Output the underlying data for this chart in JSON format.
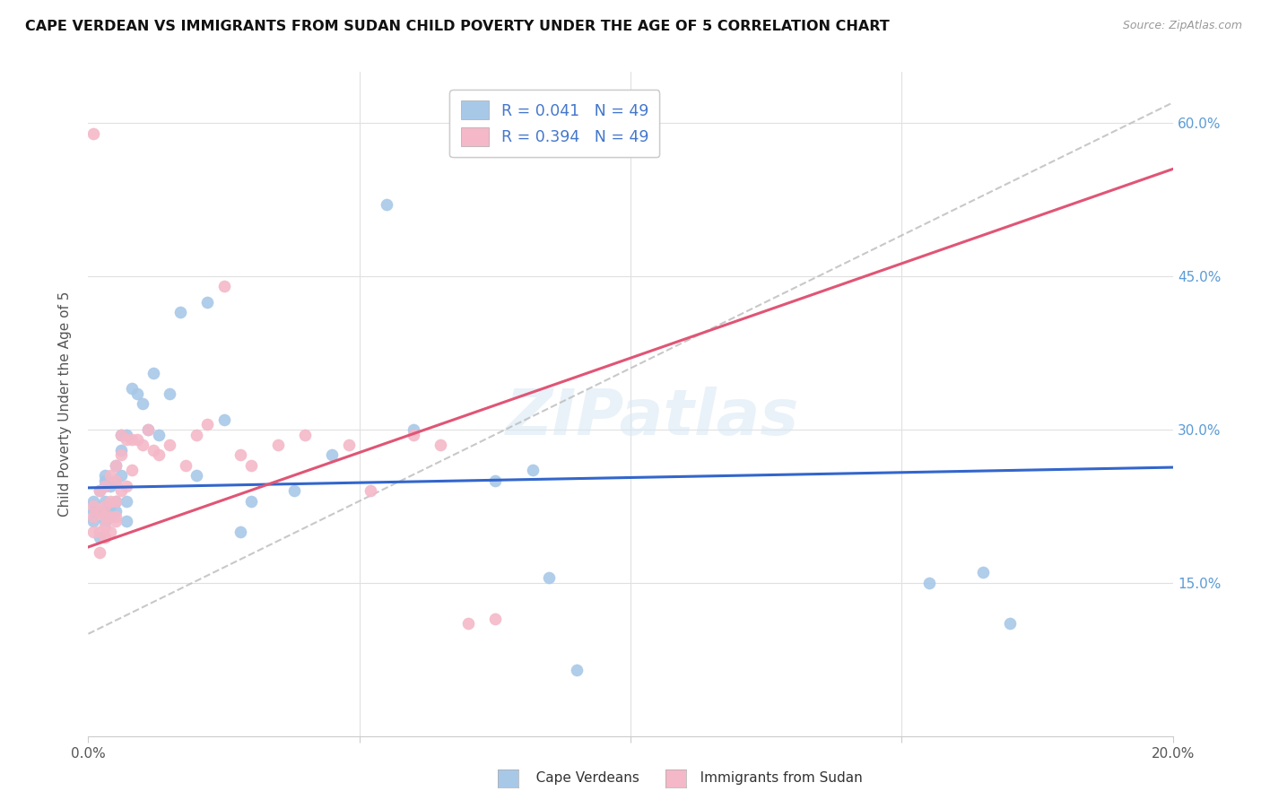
{
  "title": "CAPE VERDEAN VS IMMIGRANTS FROM SUDAN CHILD POVERTY UNDER THE AGE OF 5 CORRELATION CHART",
  "source": "Source: ZipAtlas.com",
  "ylabel": "Child Poverty Under the Age of 5",
  "xlim": [
    0.0,
    0.2
  ],
  "ylim": [
    0.0,
    0.65
  ],
  "x_ticks": [
    0.0,
    0.05,
    0.1,
    0.15,
    0.2
  ],
  "y_ticks": [
    0.0,
    0.15,
    0.3,
    0.45,
    0.6
  ],
  "blue_color": "#a8c8e8",
  "pink_color": "#f4b8c8",
  "blue_line_color": "#3366cc",
  "pink_line_color": "#e05575",
  "dashed_line_color": "#bbbbbb",
  "R_blue": 0.041,
  "N_blue": 49,
  "R_pink": 0.394,
  "N_pink": 49,
  "cape_verdean_x": [
    0.001,
    0.001,
    0.001,
    0.002,
    0.002,
    0.002,
    0.003,
    0.003,
    0.003,
    0.003,
    0.003,
    0.003,
    0.004,
    0.004,
    0.004,
    0.005,
    0.005,
    0.005,
    0.005,
    0.006,
    0.006,
    0.006,
    0.007,
    0.007,
    0.007,
    0.008,
    0.009,
    0.01,
    0.011,
    0.012,
    0.013,
    0.015,
    0.017,
    0.02,
    0.022,
    0.025,
    0.028,
    0.03,
    0.038,
    0.045,
    0.055,
    0.06,
    0.075,
    0.082,
    0.085,
    0.09,
    0.155,
    0.165,
    0.17
  ],
  "cape_verdean_y": [
    0.21,
    0.22,
    0.23,
    0.195,
    0.22,
    0.24,
    0.21,
    0.22,
    0.23,
    0.245,
    0.25,
    0.255,
    0.215,
    0.225,
    0.245,
    0.22,
    0.23,
    0.25,
    0.265,
    0.255,
    0.28,
    0.295,
    0.21,
    0.23,
    0.295,
    0.34,
    0.335,
    0.325,
    0.3,
    0.355,
    0.295,
    0.335,
    0.415,
    0.255,
    0.425,
    0.31,
    0.2,
    0.23,
    0.24,
    0.275,
    0.52,
    0.3,
    0.25,
    0.26,
    0.155,
    0.065,
    0.15,
    0.16,
    0.11
  ],
  "sudan_x": [
    0.001,
    0.001,
    0.001,
    0.001,
    0.002,
    0.002,
    0.002,
    0.002,
    0.003,
    0.003,
    0.003,
    0.003,
    0.003,
    0.004,
    0.004,
    0.004,
    0.004,
    0.005,
    0.005,
    0.005,
    0.005,
    0.005,
    0.006,
    0.006,
    0.006,
    0.007,
    0.007,
    0.008,
    0.008,
    0.009,
    0.01,
    0.011,
    0.012,
    0.013,
    0.015,
    0.018,
    0.02,
    0.022,
    0.025,
    0.028,
    0.03,
    0.035,
    0.04,
    0.048,
    0.052,
    0.06,
    0.065,
    0.07,
    0.075
  ],
  "sudan_y": [
    0.2,
    0.215,
    0.225,
    0.59,
    0.18,
    0.2,
    0.22,
    0.24,
    0.195,
    0.205,
    0.215,
    0.225,
    0.245,
    0.2,
    0.215,
    0.23,
    0.255,
    0.21,
    0.215,
    0.23,
    0.25,
    0.265,
    0.24,
    0.275,
    0.295,
    0.245,
    0.29,
    0.26,
    0.29,
    0.29,
    0.285,
    0.3,
    0.28,
    0.275,
    0.285,
    0.265,
    0.295,
    0.305,
    0.44,
    0.275,
    0.265,
    0.285,
    0.295,
    0.285,
    0.24,
    0.295,
    0.285,
    0.11,
    0.115
  ],
  "background_color": "#ffffff",
  "grid_color": "#e0e0e0",
  "watermark": "ZIPatlas"
}
